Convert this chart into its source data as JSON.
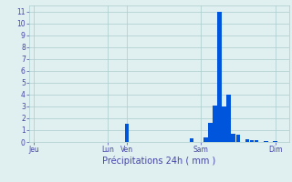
{
  "title": "",
  "xlabel": "Précipitations 24h ( mm )",
  "bar_color": "#0055dd",
  "bg_color": "#e0f0f0",
  "grid_color": "#aacccc",
  "text_color": "#4444aa",
  "ylim": [
    0,
    11.5
  ],
  "yticks": [
    0,
    1,
    2,
    3,
    4,
    5,
    6,
    7,
    8,
    9,
    10,
    11
  ],
  "n_slots": 56,
  "xtick_positions": [
    0,
    16,
    20,
    36,
    52
  ],
  "xtick_labels": [
    "Jeu",
    "Lun",
    "Ven",
    "Sam",
    "Dim"
  ],
  "bar_positions": [
    20,
    34,
    37,
    38,
    39,
    40,
    41,
    42,
    43,
    44,
    46,
    47,
    48,
    50,
    52
  ],
  "bar_heights": [
    1.5,
    0.3,
    0.4,
    1.6,
    3.1,
    11.0,
    3.0,
    4.0,
    0.7,
    0.6,
    0.2,
    0.15,
    0.15,
    0.1,
    0.1
  ],
  "bar_width": 0.9,
  "figsize": [
    3.2,
    2.0
  ],
  "dpi": 100,
  "tick_fontsize": 5.5,
  "xlabel_fontsize": 7
}
